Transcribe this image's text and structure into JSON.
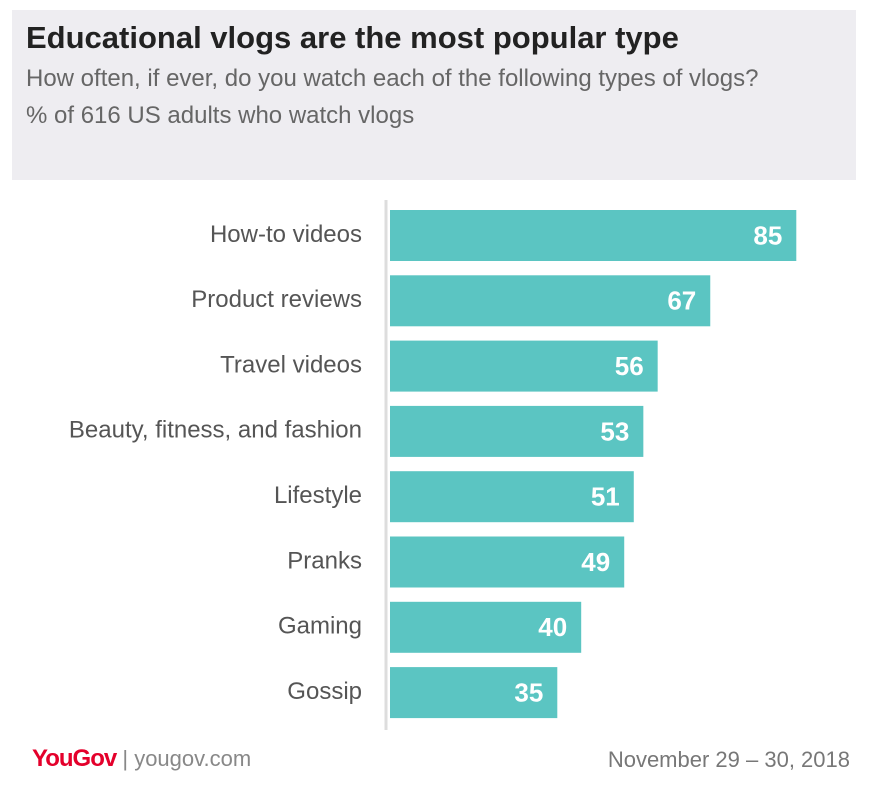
{
  "header": {
    "title": "Educational vlogs are the most popular type",
    "subtitle": "How often, if ever, do you watch each of the following types of vlogs?",
    "note": "% of 616 US adults who watch vlogs"
  },
  "chart_data": {
    "type": "bar",
    "orientation": "horizontal",
    "categories": [
      "How-to videos",
      "Product reviews",
      "Travel videos",
      "Beauty, fitness, and fashion",
      "Lifestyle",
      "Pranks",
      "Gaming",
      "Gossip"
    ],
    "values": [
      85,
      67,
      56,
      53,
      51,
      49,
      40,
      35
    ],
    "color": "#5bc5c2"
  },
  "footer": {
    "brand": "YouGov",
    "site": "yougov.com",
    "date": "November 29 – 30, 2018"
  }
}
